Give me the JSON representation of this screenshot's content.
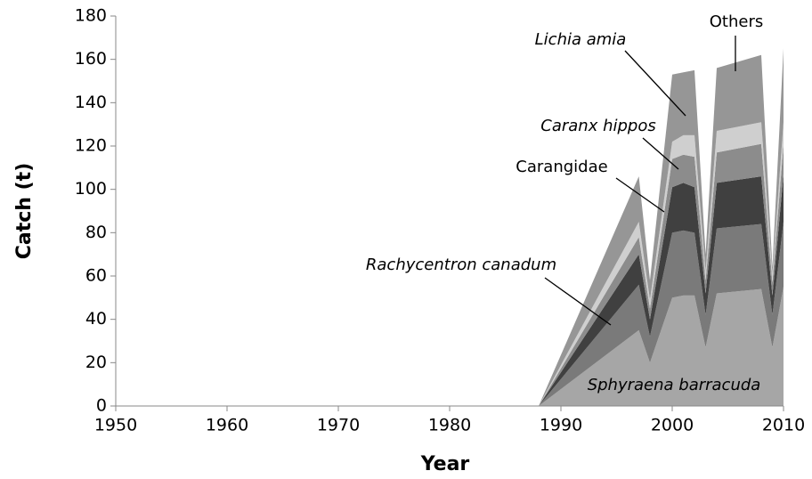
{
  "chart_data": {
    "type": "stacked_area",
    "x_label": "Year",
    "y_label": "Catch (t)",
    "x": [
      1988,
      1997,
      1998,
      2000,
      2001,
      2002,
      2003,
      2004,
      2008,
      2009,
      2010
    ],
    "series": [
      {
        "name": "Sphyraena barracuda",
        "color": "#a6a6a6",
        "values": [
          0,
          35,
          20,
          50,
          51,
          51,
          27,
          52,
          54,
          27,
          55
        ]
      },
      {
        "name": "Rachycentron canadum",
        "color": "#7a7a7a",
        "values": [
          0,
          21,
          12,
          30,
          30,
          29,
          15,
          30,
          30,
          15,
          30
        ]
      },
      {
        "name": "Carangidae",
        "color": "#404040",
        "values": [
          0,
          14,
          8,
          21,
          22,
          21,
          10,
          21,
          22,
          9,
          22
        ]
      },
      {
        "name": "Caranx hippos",
        "color": "#8c8c8c",
        "values": [
          0,
          8,
          5,
          13,
          13,
          14,
          6,
          14,
          15,
          6,
          14
        ]
      },
      {
        "name": "Lichia amia",
        "color": "#cfcfcf",
        "values": [
          0,
          7,
          4,
          8,
          9,
          10,
          4,
          10,
          10,
          4,
          10
        ]
      },
      {
        "name": "Others",
        "color": "#969696",
        "values": [
          0,
          21,
          9,
          31,
          29,
          30,
          8,
          29,
          31,
          3,
          34
        ]
      }
    ],
    "xlim": [
      1950,
      2010
    ],
    "xticks": [
      1950,
      1960,
      1970,
      1980,
      1990,
      2000,
      2010
    ],
    "ylim": [
      0,
      180
    ],
    "yticks": [
      0,
      20,
      40,
      60,
      80,
      100,
      120,
      140,
      160,
      180
    ],
    "grid": false
  }
}
